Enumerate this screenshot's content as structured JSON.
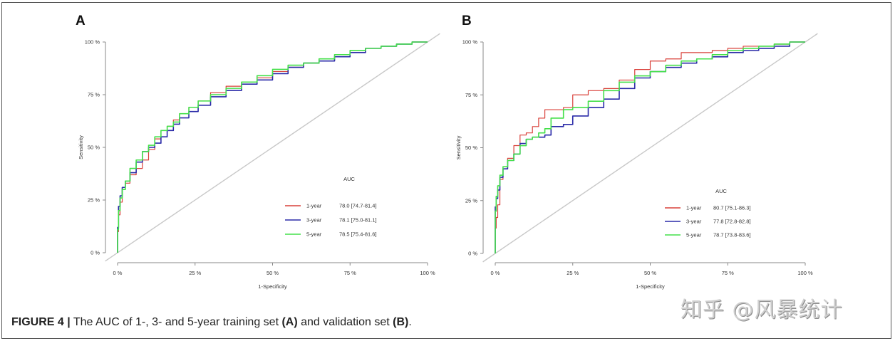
{
  "figure": {
    "caption_label": "FIGURE 4 |",
    "caption_text_1": " The AUC of 1-, 3- and 5-year training set ",
    "caption_bold_a": "(A)",
    "caption_text_2": " and validation set ",
    "caption_bold_b": "(B)",
    "caption_end": ".",
    "watermark": "知乎 @风暴统计"
  },
  "chart_data": [
    {
      "panel": "A",
      "type": "line",
      "title": "",
      "xlabel": "1-Specificity",
      "ylabel": "Sensitivity",
      "xlim": [
        0,
        100
      ],
      "ylim": [
        0,
        100
      ],
      "x_ticks": [
        "0 %",
        "25 %",
        "50 %",
        "75 %",
        "100 %"
      ],
      "y_ticks": [
        "0 %",
        "25 %",
        "50 %",
        "75 %",
        "100 %"
      ],
      "grid": false,
      "reference_line": "diagonal",
      "legend": {
        "title": "AUC",
        "placement": "bottom-right"
      },
      "series": [
        {
          "name": "1-year",
          "auc": "78.0 [74.7-81.4]",
          "color": "#d9403a",
          "x": [
            0,
            0.3,
            0.8,
            1.5,
            2.5,
            4,
            6,
            8,
            10,
            12,
            14,
            16,
            18,
            20,
            23,
            26,
            30,
            35,
            40,
            45,
            50,
            55,
            60,
            65,
            70,
            75,
            80,
            85,
            90,
            95,
            100
          ],
          "y": [
            0,
            10,
            18,
            24,
            30,
            33,
            37,
            40,
            44,
            49,
            54,
            58,
            60,
            63,
            66,
            69,
            72,
            76,
            79,
            81,
            83,
            86,
            88,
            90,
            91,
            93,
            95,
            97,
            98,
            99,
            100
          ]
        },
        {
          "name": "3-year",
          "auc": "78.1 [75.0-81.1]",
          "color": "#2a2aa8",
          "x": [
            0,
            0.3,
            0.8,
            1.5,
            2.5,
            4,
            6,
            8,
            10,
            12,
            14,
            16,
            18,
            20,
            23,
            26,
            30,
            35,
            40,
            45,
            50,
            55,
            60,
            65,
            70,
            75,
            80,
            85,
            90,
            95,
            100
          ],
          "y": [
            0,
            12,
            22,
            27,
            31,
            34,
            38,
            43,
            48,
            50,
            52,
            55,
            58,
            61,
            64,
            67,
            70,
            74,
            77,
            80,
            82,
            85,
            88,
            90,
            91,
            93,
            95,
            97,
            98,
            99,
            100
          ]
        },
        {
          "name": "5-year",
          "auc": "78.5 [75.4-81.6]",
          "color": "#44e04a",
          "x": [
            0,
            0.3,
            0.8,
            1.5,
            2.5,
            4,
            6,
            8,
            10,
            12,
            14,
            16,
            18,
            20,
            23,
            26,
            30,
            35,
            40,
            45,
            50,
            55,
            60,
            65,
            70,
            75,
            80,
            85,
            90,
            95,
            100
          ],
          "y": [
            0,
            11,
            20,
            26,
            30,
            34,
            40,
            44,
            48,
            51,
            55,
            58,
            60,
            62,
            66,
            69,
            72,
            75,
            78,
            81,
            84,
            87,
            89,
            90,
            92,
            94,
            96,
            97,
            98,
            99,
            100
          ]
        }
      ]
    },
    {
      "panel": "B",
      "type": "line",
      "title": "",
      "xlabel": "1-Specificity",
      "ylabel": "Sensitivity",
      "xlim": [
        0,
        100
      ],
      "ylim": [
        0,
        100
      ],
      "x_ticks": [
        "0 %",
        "25 %",
        "50 %",
        "75 %",
        "100 %"
      ],
      "y_ticks": [
        "0 %",
        "25 %",
        "50 %",
        "75 %",
        "100 %"
      ],
      "grid": false,
      "reference_line": "diagonal",
      "legend": {
        "title": "AUC",
        "placement": "bottom-right"
      },
      "series": [
        {
          "name": "1-year",
          "auc": "80.7 [75.1-86.3]",
          "color": "#d9403a",
          "x": [
            0,
            0.3,
            0.8,
            1.5,
            2.5,
            4,
            6,
            8,
            10,
            12,
            14,
            16,
            18,
            22,
            25,
            30,
            35,
            40,
            45,
            50,
            55,
            60,
            65,
            70,
            75,
            80,
            85,
            90,
            95,
            100
          ],
          "y": [
            0,
            12,
            17,
            23,
            35,
            40,
            45,
            51,
            56,
            57,
            60,
            64,
            68,
            68,
            69,
            75,
            77,
            78,
            82,
            87,
            91,
            92,
            95,
            95,
            96,
            97,
            98,
            98,
            99,
            100
          ]
        },
        {
          "name": "3-year",
          "auc": "77.8 [72.8-82.8]",
          "color": "#2a2aa8",
          "x": [
            0,
            0.3,
            0.8,
            1.5,
            2.5,
            4,
            6,
            8,
            10,
            12,
            14,
            16,
            18,
            22,
            25,
            30,
            35,
            40,
            45,
            50,
            55,
            60,
            65,
            70,
            75,
            80,
            85,
            90,
            95,
            100
          ],
          "y": [
            0,
            22,
            26,
            30,
            36,
            40,
            44,
            47,
            52,
            54,
            55,
            55,
            56,
            60,
            61,
            65,
            69,
            73,
            78,
            83,
            86,
            88,
            90,
            92,
            93,
            95,
            96,
            97,
            98,
            100
          ]
        },
        {
          "name": "5-year",
          "auc": "78.7 [73.8-83.6]",
          "color": "#44e04a",
          "x": [
            0,
            0.3,
            0.8,
            1.5,
            2.5,
            4,
            6,
            8,
            10,
            12,
            14,
            16,
            18,
            22,
            25,
            30,
            35,
            40,
            45,
            50,
            55,
            60,
            65,
            70,
            75,
            80,
            85,
            90,
            95,
            100
          ],
          "y": [
            0,
            20,
            27,
            32,
            37,
            41,
            44,
            47,
            51,
            54,
            55,
            57,
            59,
            64,
            68,
            69,
            72,
            77,
            81,
            84,
            86,
            89,
            91,
            92,
            94,
            96,
            97,
            98,
            99,
            100
          ]
        }
      ]
    }
  ]
}
